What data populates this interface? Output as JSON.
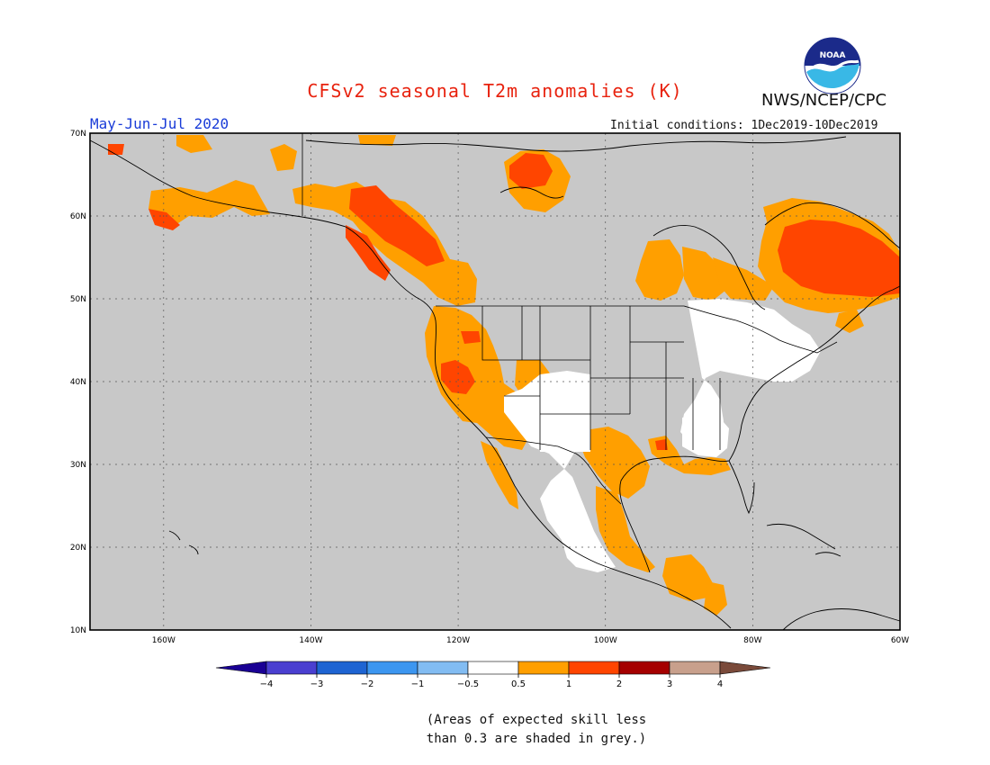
{
  "header": {
    "title": "CFSv2 seasonal T2m anomalies (K)",
    "agency": "NWS/NCEP/CPC",
    "season": "May-Jun-Jul 2020",
    "initial_conditions": "Initial conditions: 1Dec2019-10Dec2019",
    "logo_text": "NOAA"
  },
  "map": {
    "lat_labels": [
      "70N",
      "60N",
      "50N",
      "40N",
      "30N",
      "20N",
      "10N"
    ],
    "lon_labels": [
      "160W",
      "140W",
      "120W",
      "100W",
      "80W",
      "60W"
    ],
    "colors": {
      "ocean_land_grey": "#c8c8c8",
      "no_skill_grey": "#c8c8c8",
      "near_normal": "#ffffff",
      "warm1": "#ff9f00",
      "warm2": "#ff4500",
      "warm3": "#a50000"
    }
  },
  "colorbar": {
    "labels": [
      "-4",
      "-3",
      "-2",
      "-1",
      "-0.5",
      "0.5",
      "1",
      "2",
      "3",
      "4"
    ],
    "colors": [
      "#1a0094",
      "#4a3fd0",
      "#1e64d2",
      "#3c96f0",
      "#82bcf2",
      "#ffffff",
      "#ff9f00",
      "#ff4500",
      "#a50000",
      "#c8a08c",
      "#7a4a3a"
    ]
  },
  "caption": {
    "line1": "(Areas of expected skill less",
    "line2": "than 0.3 are shaded in grey.)"
  }
}
